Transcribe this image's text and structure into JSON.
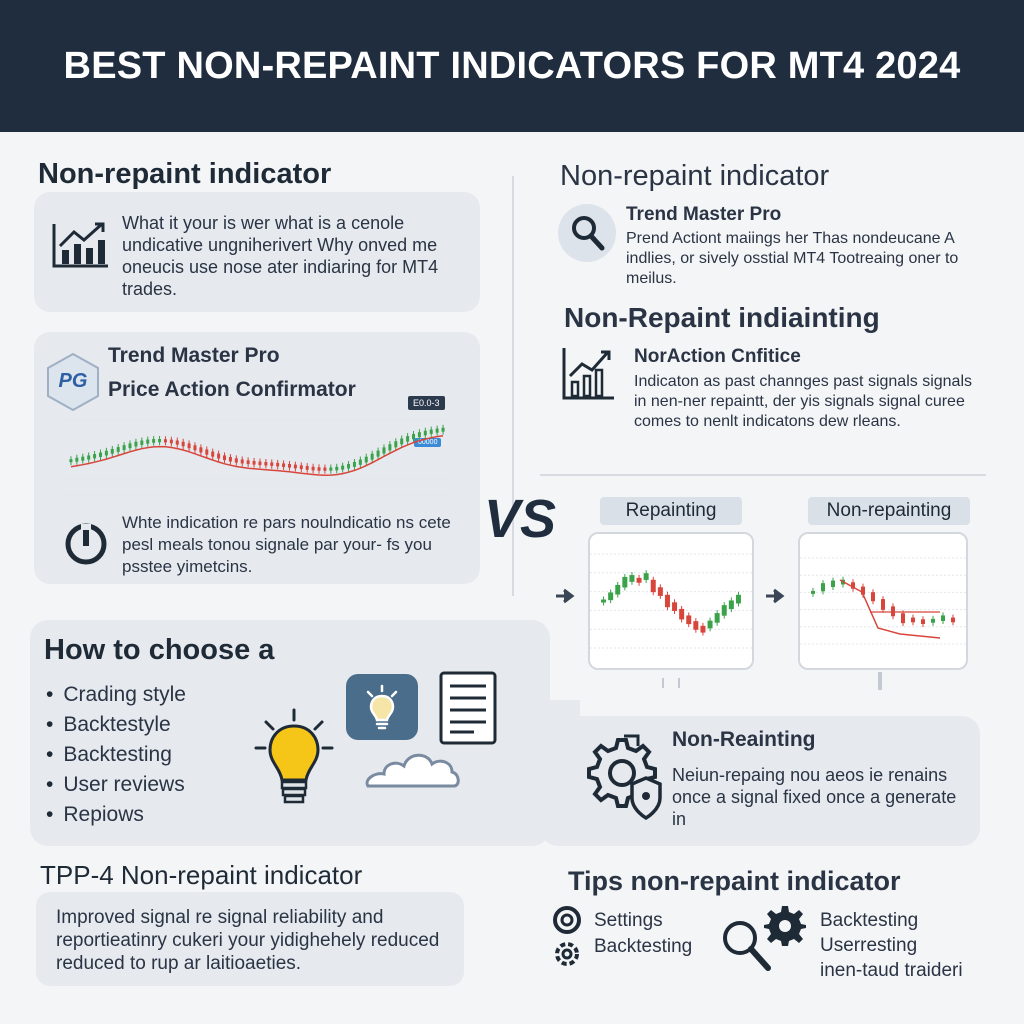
{
  "header": {
    "title": "BEST NON-REPAINT INDICATORS FOR MT4 2024"
  },
  "left": {
    "section1_title": "Non-repaint indicator",
    "card1_text": "What it your is wer what is a cenole undicative ungniherivert Why onved me oneucis use nose ater indiaring for MT4 trades.",
    "card2_title1": "Trend Master Pro",
    "card2_title2": "Price Action Confirmator",
    "card2_logo": "PG",
    "chart_tag_top": "E0.0-3",
    "chart_tag_mid": "00000",
    "card2_text": "Whte indication re pars noulndicatio ns cete pesl meals tonou signale par your- fs you psstee yimetcins."
  },
  "right": {
    "section1_title": "Non-repaint indicator",
    "item1_title": "Trend Master Pro",
    "item1_text": "Prend Actiont maiings her Thas nondeucane A indlies, or sively osstial MT4 Tootreaing oner to meilus.",
    "section2_title": "Non-Repaint indiainting",
    "item2_title": "NorAction Cnfitice",
    "item2_text": "Indicaton as past channges past signals signals in nen-ner repaintt, der yis signals signal curee comes to nenlt indicatons dew rleans."
  },
  "vs_label": "VS",
  "compare": {
    "left_label": "Repainting",
    "right_label": "Non-repainting"
  },
  "choose": {
    "title": "How to choose a",
    "items": [
      "Crading style",
      "Backtestyle",
      "Backtesting",
      "User reviews",
      "Repiows"
    ]
  },
  "nonrepaint_box": {
    "title": "Non-Reainting",
    "text": "Neiun-repaing nou aeos ie renains once a signal fixed once a generate in"
  },
  "tpp": {
    "title": "TPP-4 Non-repaint indicator",
    "text": "Improved signal re signal reliability and reportieatinry cukeri your yidighehely reduced reduced to rup ar laitioaeties."
  },
  "tips": {
    "title": "Tips non-repaint indicator",
    "col1": [
      "Settings",
      "Backtesting"
    ],
    "col2": [
      "Backtesting",
      "Userresting",
      "inen-taud traideri"
    ]
  },
  "colors": {
    "header_bg": "#1f2d3f",
    "bull": "#3aa34a",
    "bear": "#d8453b",
    "accent_blue": "#4a6d8c",
    "bulb": "#f5c518"
  }
}
